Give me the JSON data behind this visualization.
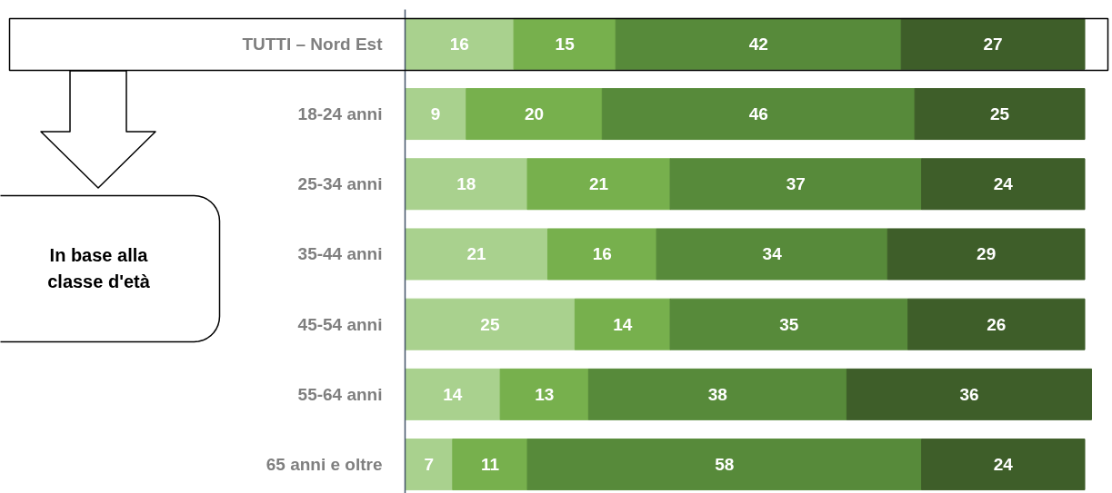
{
  "chart_data": {
    "type": "bar",
    "orientation": "horizontal",
    "stacked": true,
    "data_labels": true,
    "categories": [
      "TUTTI – Nord Est",
      "18-24 anni",
      "25-34 anni",
      "35-44 anni",
      "45-54 anni",
      "55-64 anni",
      "65 anni e oltre"
    ],
    "series": [
      {
        "color": "#a9d18e",
        "values": [
          16,
          9,
          18,
          21,
          25,
          14,
          7
        ]
      },
      {
        "color": "#77b04d",
        "values": [
          15,
          20,
          21,
          16,
          14,
          13,
          11
        ]
      },
      {
        "color": "#578a3a",
        "values": [
          42,
          46,
          37,
          34,
          35,
          38,
          58
        ]
      },
      {
        "color": "#3e5e29",
        "values": [
          27,
          25,
          24,
          29,
          26,
          36,
          24
        ]
      }
    ],
    "annotations": [
      "In base alla classe d'età"
    ]
  }
}
